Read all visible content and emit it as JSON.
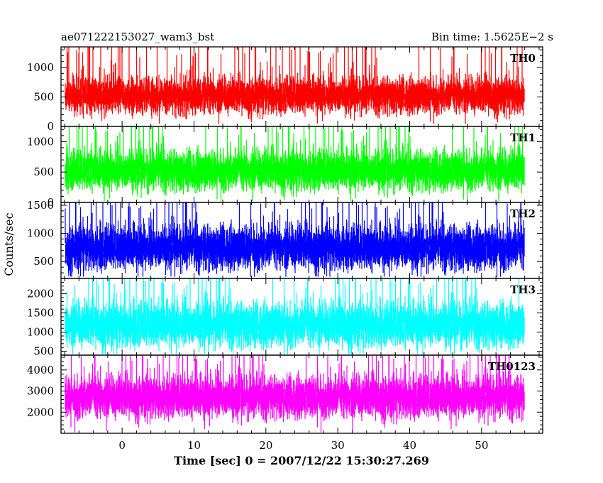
{
  "header": {
    "left_title": "ae071222153027_wam3_bst",
    "right_title": "Bin time: 1.5625E−2 s"
  },
  "chart_data": {
    "type": "line",
    "title": "ae071222153027_wam3_bst",
    "subtitle": "Bin time: 1.5625E−2 s",
    "xlabel": "Time [sec] 0 = 2007/12/22 15:30:27.269",
    "ylabel": "Counts/sec",
    "xlim": [
      -8.5,
      58.5
    ],
    "data_range": [
      -8,
      56
    ],
    "x_ticks": [
      0,
      10,
      20,
      30,
      40,
      50
    ],
    "x_tick_labels": [
      "0",
      "10",
      "20",
      "30",
      "40",
      "50"
    ],
    "grid": false,
    "panels": [
      {
        "name": "TH0",
        "color": "#ff0000",
        "ylim": [
          0,
          1350
        ],
        "y_ticks": [
          0,
          500,
          1000
        ],
        "y_tick_labels": [
          "0",
          "500",
          "1000"
        ],
        "mean": 520,
        "spread": 150,
        "min": 40,
        "max": 1350
      },
      {
        "name": "TH1",
        "color": "#00ff00",
        "ylim": [
          0,
          1250
        ],
        "y_ticks": [
          0,
          500,
          1000
        ],
        "y_tick_labels": [
          "0",
          "500",
          "1000"
        ],
        "mean": 520,
        "spread": 160,
        "min": 20,
        "max": 1250
      },
      {
        "name": "TH2",
        "color": "#0000ff",
        "ylim": [
          200,
          1550
        ],
        "y_ticks": [
          500,
          1000,
          1500
        ],
        "y_tick_labels": [
          "500",
          "1000",
          "1500"
        ],
        "mean": 740,
        "spread": 190,
        "min": 230,
        "max": 1550
      },
      {
        "name": "TH3",
        "color": "#00ffff",
        "ylim": [
          400,
          2400
        ],
        "y_ticks": [
          500,
          1000,
          1500,
          2000
        ],
        "y_tick_labels": [
          "500",
          "1000",
          "1500",
          "2000"
        ],
        "mean": 1180,
        "spread": 280,
        "min": 430,
        "max": 2400
      },
      {
        "name": "TH0123",
        "color": "#ff00ff",
        "ylim": [
          1000,
          4700
        ],
        "y_ticks": [
          2000,
          3000,
          4000
        ],
        "y_tick_labels": [
          "2000",
          "3000",
          "4000"
        ],
        "mean": 2700,
        "spread": 480,
        "min": 1050,
        "max": 4700
      }
    ]
  }
}
